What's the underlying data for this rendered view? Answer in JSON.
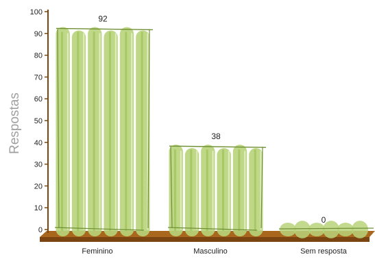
{
  "chart_data": {
    "type": "bar",
    "title": "",
    "xlabel": "",
    "ylabel": "Respostas",
    "categories": [
      "Feminino",
      "Masculino",
      "Sem resposta"
    ],
    "values": [
      92,
      38,
      0
    ],
    "data_labels": [
      "92",
      "38",
      "0"
    ],
    "ylim": [
      0,
      100
    ],
    "yticks": [
      0,
      10,
      20,
      30,
      40,
      50,
      60,
      70,
      80,
      90,
      100
    ],
    "grid": false,
    "legend": "none",
    "colors": {
      "bar_fill": "#b8d47a",
      "bar_fill_dark": "#9cc257",
      "bar_highlight": "#e8f2cf",
      "bar_stroke": "#6f8f33",
      "floor_top": "#a8671c",
      "floor_front": "#7a4510",
      "axis": "#7a4510",
      "ylabel": "#a0a0a0",
      "text": "#222222"
    }
  }
}
